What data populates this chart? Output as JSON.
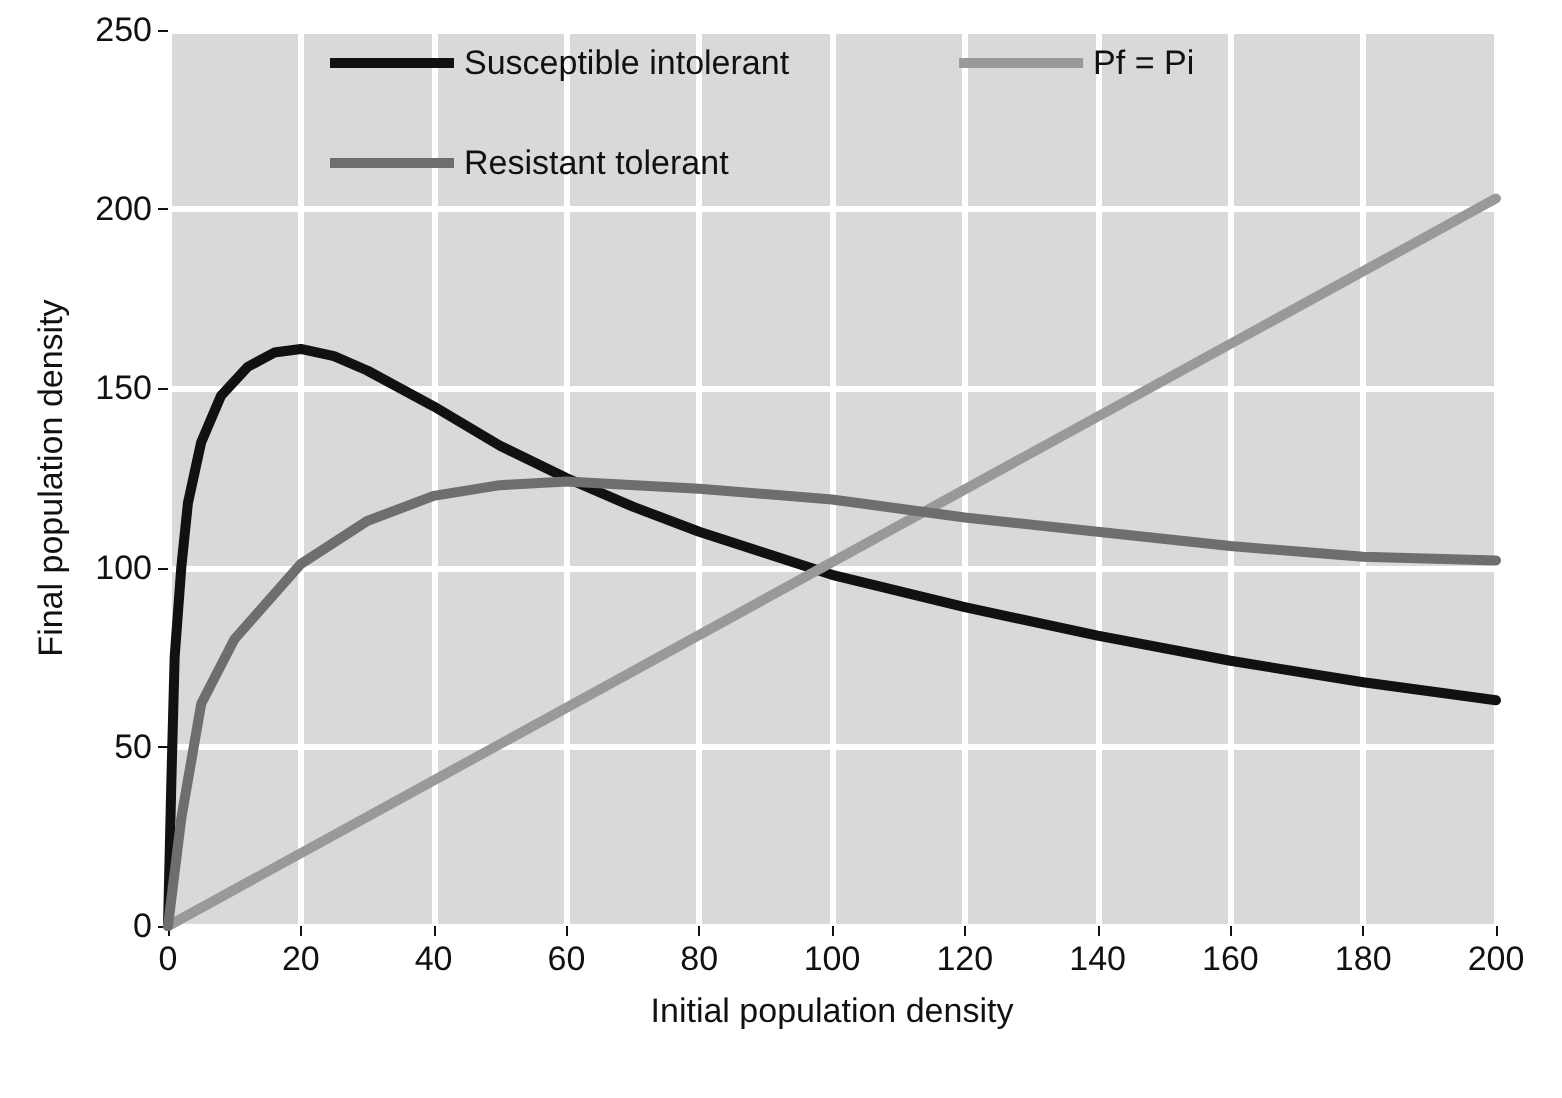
{
  "chart_data": {
    "type": "line",
    "xlabel": "Initial population density",
    "ylabel": "Final population density",
    "xlim": [
      0,
      200
    ],
    "ylim": [
      0,
      250
    ],
    "xticks": [
      0,
      20,
      40,
      60,
      80,
      100,
      120,
      140,
      160,
      180,
      200
    ],
    "yticks": [
      0,
      50,
      100,
      150,
      200,
      250
    ],
    "grid": true,
    "legend": "top",
    "marker": "none",
    "line_style": "solid",
    "series": [
      {
        "name": "Susceptible intolerant",
        "color": "#111111",
        "x": [
          0,
          0.5,
          1,
          2,
          3,
          5,
          8,
          12,
          16,
          20,
          25,
          30,
          40,
          50,
          60,
          70,
          80,
          90,
          100,
          120,
          140,
          160,
          180,
          200
        ],
        "values": [
          0,
          40,
          75,
          100,
          118,
          135,
          148,
          156,
          160,
          161,
          159,
          155,
          145,
          134,
          125,
          117,
          110,
          104,
          98,
          89,
          81,
          74,
          68,
          63
        ]
      },
      {
        "name": "Pf = Pi",
        "color": "#999999",
        "x": [
          0,
          200
        ],
        "values": [
          0,
          203
        ]
      },
      {
        "name": "Resistant tolerant",
        "color": "#6e6e6e",
        "x": [
          0,
          1,
          2,
          5,
          10,
          20,
          30,
          40,
          50,
          60,
          80,
          100,
          120,
          140,
          160,
          180,
          200
        ],
        "values": [
          0,
          15,
          30,
          62,
          80,
          101,
          113,
          120,
          123,
          124,
          122,
          119,
          114,
          110,
          106,
          103,
          102
        ]
      }
    ]
  }
}
